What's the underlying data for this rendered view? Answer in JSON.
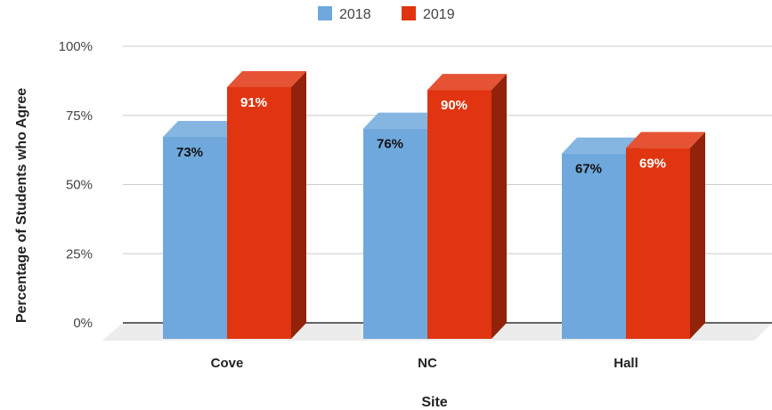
{
  "chart_data": {
    "type": "bar",
    "categories": [
      "Cove",
      "NC",
      "Hall"
    ],
    "series": [
      {
        "name": "2018",
        "values": [
          73,
          76,
          67
        ],
        "labels": [
          "73%",
          "76%",
          "67%"
        ],
        "color": "#6fa8dc",
        "label_color": "#111111"
      },
      {
        "name": "2019",
        "values": [
          91,
          90,
          69
        ],
        "labels": [
          "91%",
          "90%",
          "69%"
        ],
        "color": "#e03510",
        "label_color": "#ffffff"
      }
    ],
    "xlabel": "Site",
    "ylabel": "Percentage of Students who Agree",
    "ylim": [
      0,
      100
    ],
    "yticks": [
      0,
      25,
      50,
      75,
      100
    ],
    "ytick_labels": [
      "0%",
      "25%",
      "50%",
      "75%",
      "100%"
    ],
    "grid": true,
    "legend": "top-center",
    "style": "3d"
  }
}
